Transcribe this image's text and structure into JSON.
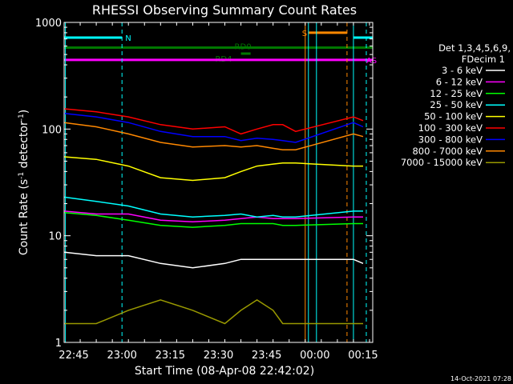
{
  "chart_data": {
    "type": "line",
    "title": "RHESSI Observing Summary Count Rates",
    "xlabel": "Start Time (08-Apr-08 22:42:02)",
    "ylabel_main": "Count Rate (s",
    "ylabel_sup1": "-1",
    "ylabel_mid": " detector",
    "ylabel_sup2": "-1",
    "ylabel_end": ")",
    "y_scale": "log",
    "ylim": [
      1,
      1000
    ],
    "x_unit": "minutes after 22:42:02",
    "xlim": [
      0,
      96
    ],
    "x_ticks": [
      {
        "label": "22:45",
        "x": 3
      },
      {
        "label": "23:00",
        "x": 18
      },
      {
        "label": "23:15",
        "x": 33
      },
      {
        "label": "23:30",
        "x": 48
      },
      {
        "label": "23:45",
        "x": 63
      },
      {
        "label": "00:00",
        "x": 78
      },
      {
        "label": "00:15",
        "x": 93
      }
    ],
    "y_ticks": [
      {
        "label": "1",
        "y": 1
      },
      {
        "label": "10",
        "y": 10
      },
      {
        "label": "100",
        "y": 100
      },
      {
        "label": "1000",
        "y": 1000
      }
    ],
    "legend": {
      "placement": "right",
      "header1": "Det 1,3,4,5,6,9,",
      "header2": "FDecim 1"
    },
    "series": [
      {
        "name": "3 - 6 keV",
        "color": "#ffffff",
        "x": [
          0,
          10,
          20,
          30,
          40,
          50,
          55,
          60,
          65,
          68,
          72,
          90,
          93
        ],
        "y": [
          7,
          6.5,
          6.5,
          5.5,
          5,
          5.5,
          6,
          6,
          6,
          6,
          6,
          6,
          5.5
        ]
      },
      {
        "name": "6 - 12 keV",
        "color": "#ff00ff",
        "x": [
          0,
          10,
          20,
          30,
          40,
          50,
          55,
          60,
          65,
          68,
          72,
          90,
          93
        ],
        "y": [
          17,
          16,
          16,
          14,
          13.5,
          14,
          14.5,
          15,
          14.5,
          14.5,
          14.5,
          15,
          15
        ]
      },
      {
        "name": "12 - 25 keV",
        "color": "#00ff00",
        "x": [
          0,
          10,
          20,
          30,
          40,
          50,
          55,
          60,
          65,
          68,
          72,
          90,
          93
        ],
        "y": [
          16.5,
          15.5,
          14,
          12.5,
          12,
          12.5,
          13,
          13,
          13,
          12.5,
          12.5,
          13,
          13
        ]
      },
      {
        "name": "25 - 50 keV",
        "color": "#00ffff",
        "x": [
          0,
          10,
          20,
          30,
          40,
          50,
          55,
          60,
          65,
          68,
          72,
          90,
          93
        ],
        "y": [
          23,
          21,
          19,
          16,
          15,
          15.5,
          16,
          15,
          15.5,
          15,
          15,
          17,
          17
        ]
      },
      {
        "name": "50 - 100 keV",
        "color": "#ffff00",
        "x": [
          0,
          10,
          20,
          30,
          40,
          50,
          55,
          60,
          65,
          68,
          72,
          90,
          93
        ],
        "y": [
          55,
          52,
          45,
          35,
          33,
          35,
          40,
          45,
          47,
          48,
          48,
          45,
          45
        ]
      },
      {
        "name": "100 - 300 keV",
        "color": "#ff0000",
        "x": [
          0,
          10,
          20,
          30,
          40,
          50,
          55,
          60,
          65,
          68,
          72,
          90,
          93
        ],
        "y": [
          155,
          145,
          130,
          110,
          100,
          105,
          90,
          100,
          110,
          110,
          95,
          130,
          120
        ]
      },
      {
        "name": "300 - 800 keV",
        "color": "#0000ff",
        "x": [
          0,
          10,
          20,
          30,
          40,
          50,
          55,
          60,
          65,
          68,
          72,
          90,
          93
        ],
        "y": [
          140,
          130,
          115,
          95,
          85,
          85,
          78,
          82,
          80,
          78,
          75,
          115,
          105
        ]
      },
      {
        "name": "800 - 7000 keV",
        "color": "#ff8800",
        "x": [
          0,
          10,
          20,
          30,
          40,
          50,
          55,
          60,
          65,
          68,
          72,
          90,
          93
        ],
        "y": [
          115,
          105,
          90,
          75,
          68,
          70,
          68,
          70,
          66,
          64,
          64,
          90,
          85
        ]
      },
      {
        "name": "7000 - 15000 keV",
        "color": "#999900",
        "x": [
          0,
          10,
          20,
          30,
          40,
          50,
          55,
          60,
          65,
          68,
          72,
          90,
          93
        ],
        "y": [
          1.5,
          1.5,
          2,
          2.5,
          2,
          1.5,
          2,
          2.5,
          2,
          1.5,
          1.5,
          1.5,
          1.5
        ]
      }
    ],
    "flags": [
      {
        "label": "N",
        "color": "#00ffff",
        "x1": 0,
        "x2": 18,
        "y": 720,
        "label_x": 19
      },
      {
        "label": "",
        "color": "#00ffff",
        "x1": 90,
        "x2": 96,
        "y": 720,
        "label_x": null
      },
      {
        "label": "S",
        "color": "#ff8800",
        "x1": 76,
        "x2": 88,
        "y": 800,
        "label_x": 74
      },
      {
        "label": "RD0",
        "color": "#007700",
        "x1": 0,
        "x2": 96,
        "y": 580,
        "label_x": 53
      },
      {
        "label": "RD4",
        "color": "#007700",
        "x1": 55,
        "x2": 58,
        "y": 510,
        "label_x": 47
      },
      {
        "label": "AS",
        "color": "#ff00ff",
        "x1": 0,
        "x2": 96,
        "y": 445,
        "label_x": 94
      }
    ],
    "vlines": [
      {
        "x": 0.4,
        "color": "#00ffff",
        "dash": false
      },
      {
        "x": 18,
        "color": "#00ffff",
        "dash": true
      },
      {
        "x": 75,
        "color": "#ff8800",
        "dash": false
      },
      {
        "x": 76,
        "color": "#00ffff",
        "dash": false
      },
      {
        "x": 78.5,
        "color": "#00ffff",
        "dash": false
      },
      {
        "x": 88,
        "color": "#ff8800",
        "dash": true
      },
      {
        "x": 90,
        "color": "#00ffff",
        "dash": false
      },
      {
        "x": 94,
        "color": "#00ffff",
        "dash": true
      }
    ]
  },
  "timestamp": "14-Oct-2021 07:28"
}
